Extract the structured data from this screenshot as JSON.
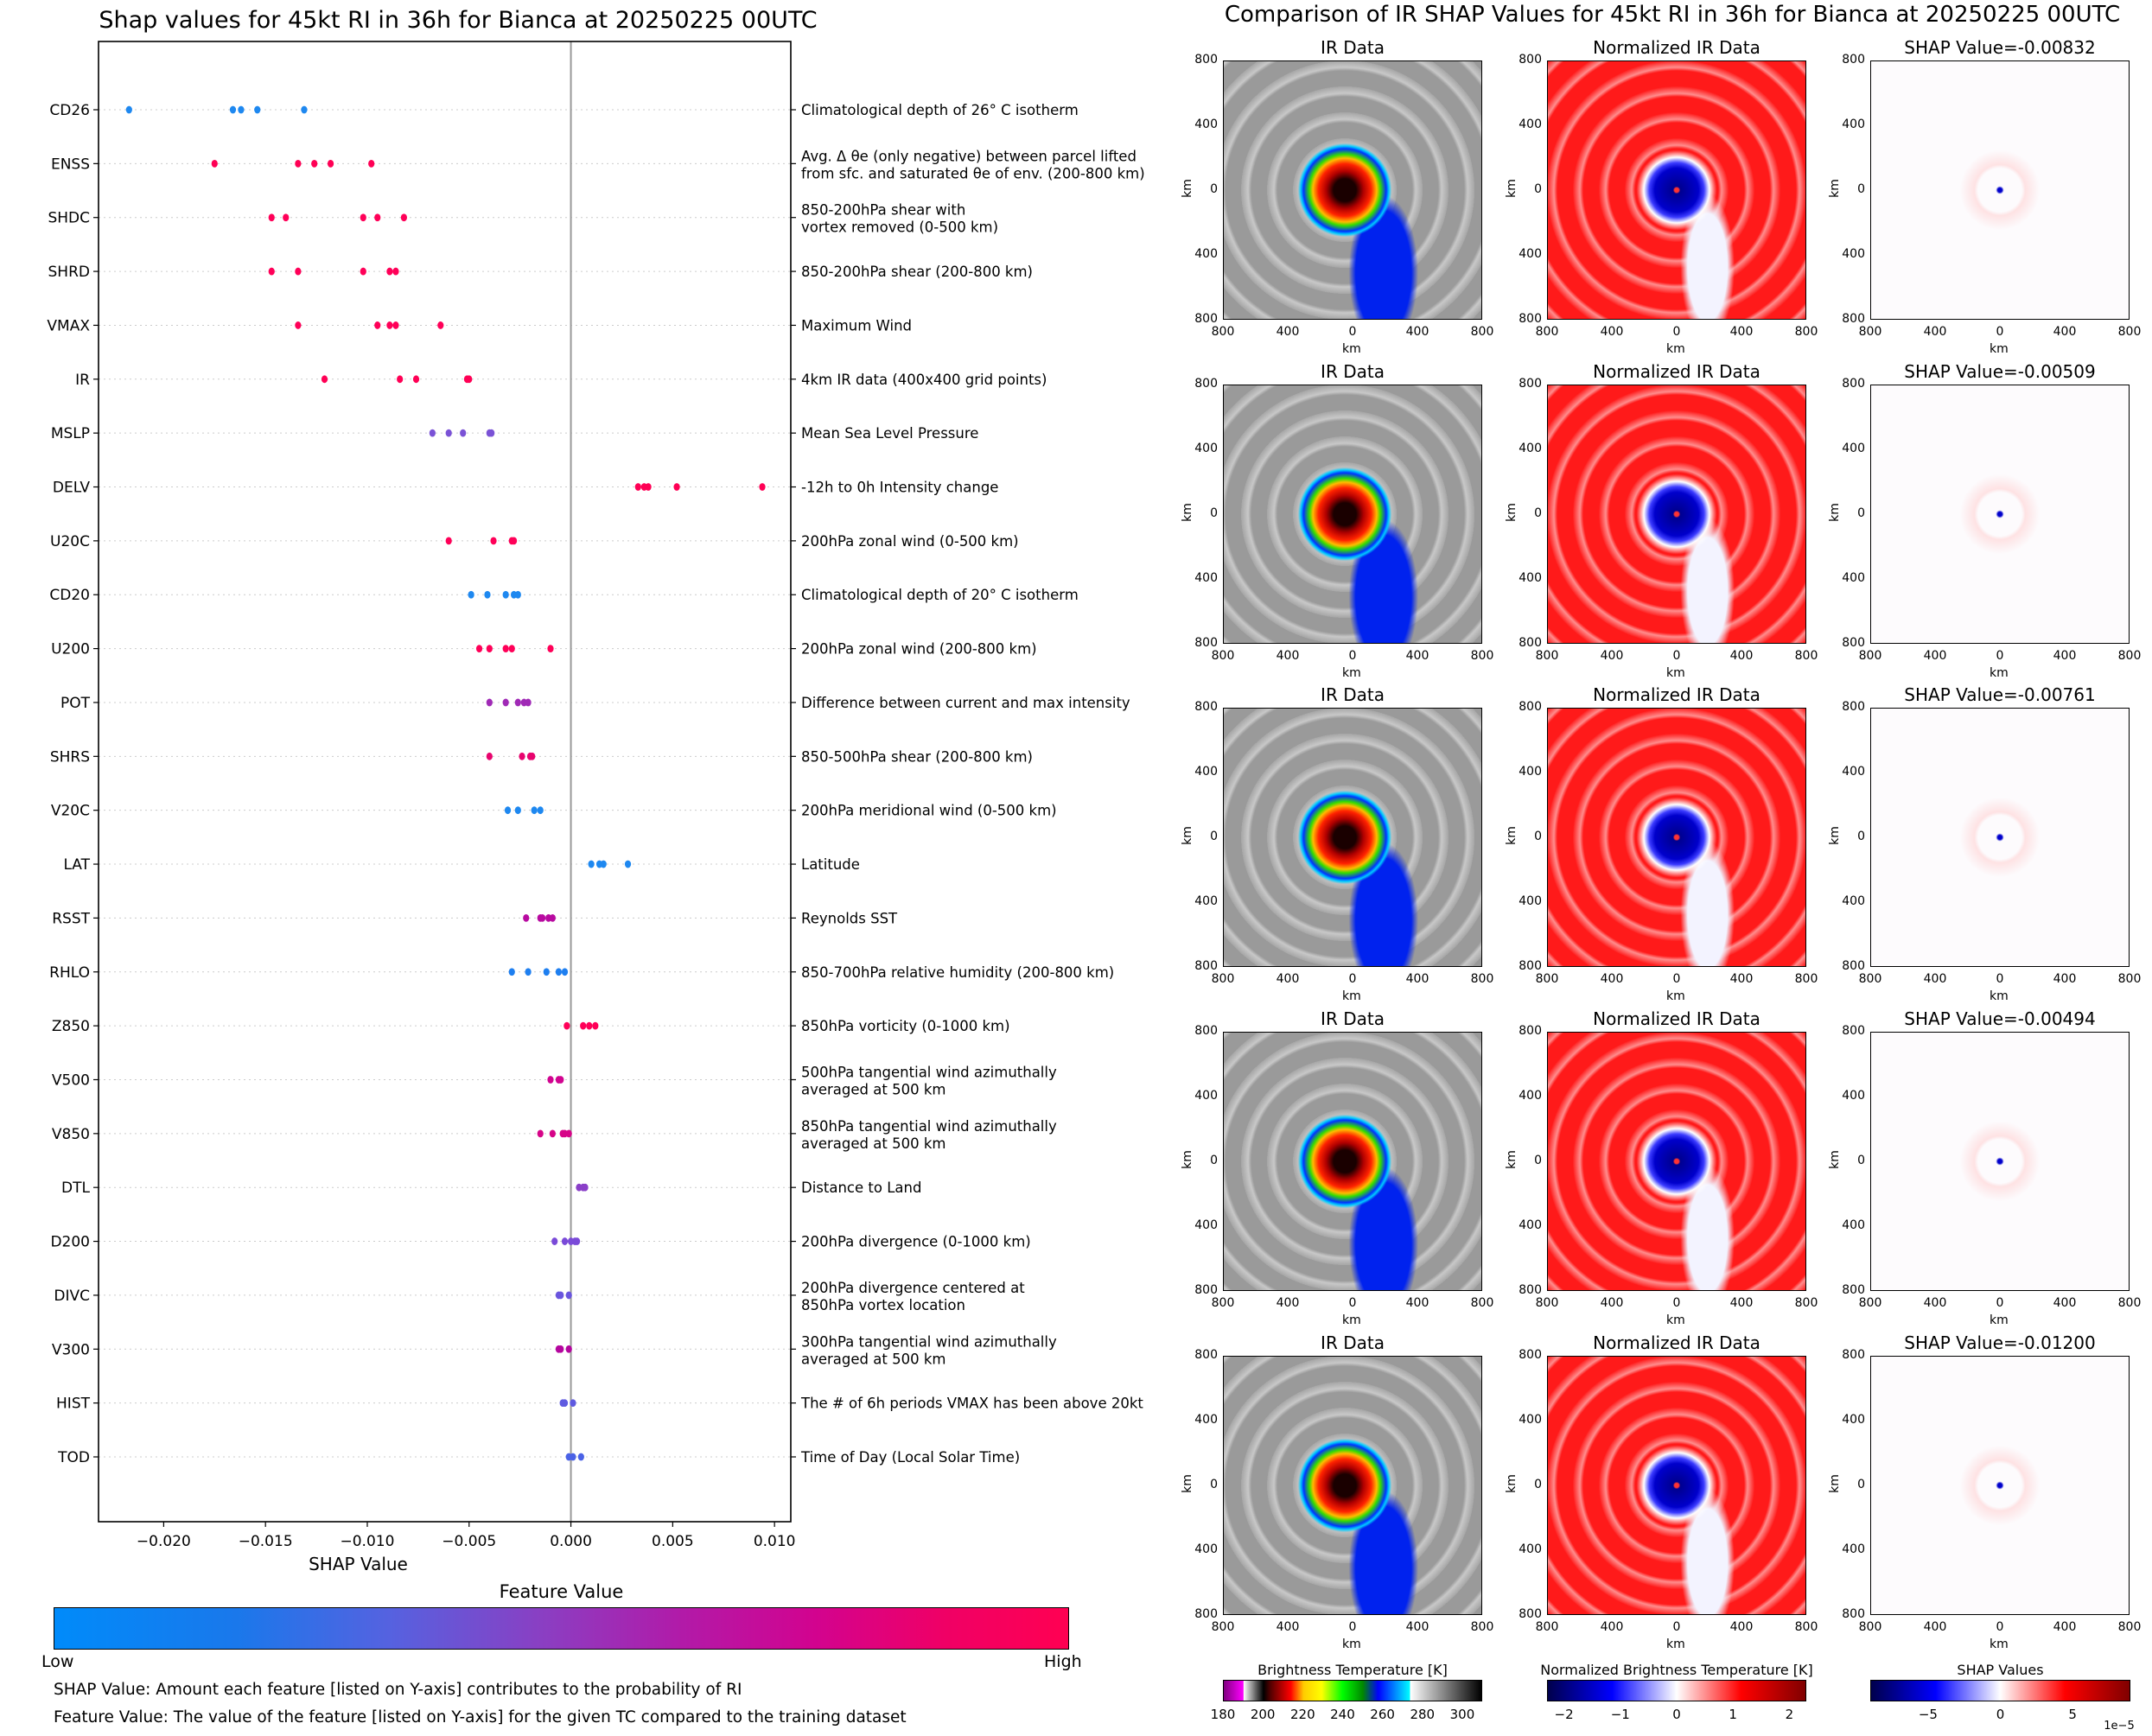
{
  "left": {
    "title": "Shap values for 45kt RI in 36h for Bianca at 20250225 00UTC",
    "colorbar": {
      "title": "Feature Value",
      "low_label": "Low",
      "high_label": "High"
    },
    "notes": [
      "SHAP Value: Amount each feature [listed on Y-axis] contributes to the probability of RI",
      "Feature Value: The value of the feature [listed on Y-axis] for the given TC compared to the training dataset"
    ]
  },
  "right": {
    "title": "Comparison of IR SHAP Values for 45kt RI in 36h for Bianca at 20250225 00UTC",
    "col_titles": [
      "IR Data",
      "Normalized IR Data"
    ],
    "shap_title_prefix": "SHAP Value=",
    "rows": [
      {
        "shap_value": "-0.00832"
      },
      {
        "shap_value": "-0.00509"
      },
      {
        "shap_value": "-0.00761"
      },
      {
        "shap_value": "-0.00494"
      },
      {
        "shap_value": "-0.01200"
      }
    ],
    "axis_ticks": [
      "800",
      "400",
      "0",
      "400",
      "800"
    ],
    "axis_label": "km",
    "colorbars": [
      {
        "title": "Brightness Temperature [K]",
        "ticks": [
          "180",
          "200",
          "220",
          "240",
          "260",
          "280",
          "300"
        ],
        "range": [
          180,
          310
        ]
      },
      {
        "title": "Normalized Brightness Temperature [K]",
        "ticks": [
          "−2",
          "−1",
          "0",
          "1",
          "2"
        ],
        "range": [
          -2.3,
          2.3
        ]
      },
      {
        "title": "SHAP Values",
        "ticks": [
          "−5",
          "0",
          "5"
        ],
        "range": [
          -9,
          9
        ],
        "multiplier": "1e−5"
      }
    ]
  },
  "chart_data": {
    "type": "scatter",
    "subtype": "shap-beeswarm",
    "title": "Shap values for 45kt RI in 36h for Bianca at 20250225 00UTC",
    "xlabel": "SHAP Value",
    "ylabel": "",
    "xlim": [
      -0.0232,
      0.0108
    ],
    "xticks": [
      -0.02,
      -0.015,
      -0.01,
      -0.005,
      0.0,
      0.005,
      0.01
    ],
    "xtick_labels": [
      "−0.020",
      "−0.015",
      "−0.010",
      "−0.005",
      "0.000",
      "0.005",
      "0.010"
    ],
    "zero_line": 0.0,
    "grid": "horizontal dotted per feature",
    "colorbar": {
      "label": "Feature Value",
      "low": "Low",
      "high": "High",
      "low_color": "#008bfa",
      "high_color": "#ff0052"
    },
    "features": [
      {
        "name": "CD26",
        "desc": "Climatological depth of 26° C isotherm",
        "color": "#1e88f0",
        "shap": [
          -0.0217,
          -0.0166,
          -0.0162,
          -0.0154,
          -0.0131
        ]
      },
      {
        "name": "ENSS",
        "desc": "Avg. Δ θe (only negative) between parcel lifted\nfrom sfc. and saturated θe of env. (200-800 km)",
        "color": "#ff0055",
        "shap": [
          -0.0175,
          -0.0134,
          -0.0126,
          -0.0118,
          -0.0098
        ]
      },
      {
        "name": "SHDC",
        "desc": "850-200hPa shear with\nvortex removed (0-500 km)",
        "color": "#ff0058",
        "shap": [
          -0.0147,
          -0.014,
          -0.0102,
          -0.0095,
          -0.0082
        ]
      },
      {
        "name": "SHRD",
        "desc": "850-200hPa shear (200-800 km)",
        "color": "#ff0058",
        "shap": [
          -0.0147,
          -0.0134,
          -0.0102,
          -0.0089,
          -0.0086
        ]
      },
      {
        "name": "VMAX",
        "desc": "Maximum Wind",
        "color": "#ff0058",
        "shap": [
          -0.0134,
          -0.0095,
          -0.0089,
          -0.0086,
          -0.0064
        ]
      },
      {
        "name": "IR",
        "desc": "4km IR data (400x400 grid points)",
        "color": "#ff0055",
        "shap": [
          -0.0121,
          -0.0084,
          -0.0076,
          -0.0051,
          -0.005
        ]
      },
      {
        "name": "MSLP",
        "desc": "Mean Sea Level Pressure",
        "color": "#7a52d6",
        "shap": [
          -0.0068,
          -0.006,
          -0.0053,
          -0.004,
          -0.0039
        ]
      },
      {
        "name": "DELV",
        "desc": "-12h to 0h Intensity change",
        "color": "#ff0055",
        "shap": [
          0.0033,
          0.0036,
          0.0038,
          0.0052,
          0.0094
        ]
      },
      {
        "name": "U20C",
        "desc": "200hPa zonal wind (0-500 km)",
        "color": "#ff0058",
        "shap": [
          -0.006,
          -0.0038,
          -0.0029,
          -0.0028
        ]
      },
      {
        "name": "CD20",
        "desc": "Climatological depth of 20° C isotherm",
        "color": "#1e88f0",
        "shap": [
          -0.0049,
          -0.0041,
          -0.0032,
          -0.0028,
          -0.0026
        ]
      },
      {
        "name": "U200",
        "desc": "200hPa zonal wind (200-800 km)",
        "color": "#ff0058",
        "shap": [
          -0.0045,
          -0.004,
          -0.0032,
          -0.0029,
          -0.001
        ]
      },
      {
        "name": "POT",
        "desc": "Difference between current and max intensity",
        "color": "#a02ab6",
        "shap": [
          -0.004,
          -0.0032,
          -0.0026,
          -0.0023,
          -0.0021
        ]
      },
      {
        "name": "SHRS",
        "desc": "850-500hPa shear (200-800 km)",
        "color": "#e8046e",
        "shap": [
          -0.004,
          -0.0024,
          -0.002,
          -0.0019
        ]
      },
      {
        "name": "V20C",
        "desc": "200hPa meridional wind (0-500 km)",
        "color": "#1e88f0",
        "shap": [
          -0.0031,
          -0.0026,
          -0.0018,
          -0.0015
        ]
      },
      {
        "name": "LAT",
        "desc": "Latitude",
        "color": "#1e88f0",
        "shap": [
          0.001,
          0.0014,
          0.0016,
          0.0028
        ]
      },
      {
        "name": "RSST",
        "desc": "Reynolds SST",
        "color": "#b80aa0",
        "shap": [
          -0.0022,
          -0.0015,
          -0.0014,
          -0.0011,
          -0.0009
        ]
      },
      {
        "name": "RHLO",
        "desc": "850-700hPa relative humidity (200-800 km)",
        "color": "#1e7ff0",
        "shap": [
          -0.0029,
          -0.0021,
          -0.0012,
          -0.0006,
          -0.0003
        ]
      },
      {
        "name": "Z850",
        "desc": "850hPa vorticity (0-1000 km)",
        "color": "#ff0058",
        "shap": [
          -0.0002,
          0.0006,
          0.0009,
          0.0012
        ]
      },
      {
        "name": "V500",
        "desc": "500hPa tangential wind azimuthally\naveraged at 500 km",
        "color": "#d10490",
        "shap": [
          -0.001,
          -0.0006,
          -0.0005
        ]
      },
      {
        "name": "V850",
        "desc": "850hPa tangential wind azimuthally\naveraged at 500 km",
        "color": "#d60488",
        "shap": [
          -0.0015,
          -0.0009,
          -0.0004,
          -0.0003,
          -0.0001
        ]
      },
      {
        "name": "DTL",
        "desc": "Distance to Land",
        "color": "#8a3fc8",
        "shap": [
          0.0004,
          0.0006,
          0.0007
        ]
      },
      {
        "name": "D200",
        "desc": "200hPa divergence (0-1000 km)",
        "color": "#7a4ad8",
        "shap": [
          -0.0008,
          -0.0003,
          0.0,
          0.0002,
          0.0003
        ]
      },
      {
        "name": "DIVC",
        "desc": "200hPa divergence centered at\n850hPa vortex location",
        "color": "#6a55de",
        "shap": [
          -0.0006,
          -0.0005,
          -0.0001
        ]
      },
      {
        "name": "V300",
        "desc": "300hPa tangential wind azimuthally\naveraged at 500 km",
        "color": "#b4069e",
        "shap": [
          -0.0006,
          -0.0005,
          -0.0001
        ]
      },
      {
        "name": "HIST",
        "desc": "The # of 6h periods VMAX has been above 20kt",
        "color": "#5f5ae0",
        "shap": [
          -0.0004,
          -0.0003,
          0.0001
        ]
      },
      {
        "name": "TOD",
        "desc": "Time of Day (Local Solar Time)",
        "color": "#4a62e6",
        "shap": [
          -0.0001,
          0.0001,
          0.0005
        ]
      }
    ]
  }
}
